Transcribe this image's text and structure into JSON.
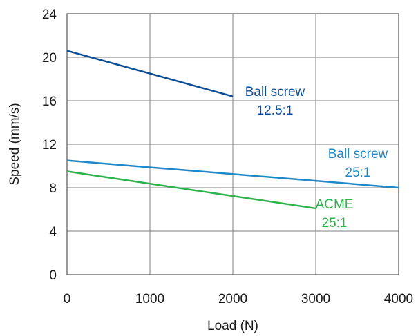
{
  "chart_data": {
    "type": "line",
    "xlabel": "Load (N)",
    "ylabel": "Speed (mm/s)",
    "xlim": [
      0,
      4000
    ],
    "ylim": [
      0,
      24
    ],
    "xticks": [
      0,
      1000,
      2000,
      3000,
      4000
    ],
    "yticks": [
      0,
      4,
      8,
      12,
      16,
      20,
      24
    ],
    "grid": true,
    "series": [
      {
        "name": "Ball screw 12.5:1",
        "label_lines": [
          "Ball screw",
          "12.5:1"
        ],
        "color": "#0d4f96",
        "x": [
          0,
          2000
        ],
        "y": [
          20.6,
          16.4
        ]
      },
      {
        "name": "Ball screw 25:1",
        "label_lines": [
          "Ball screw",
          "25:1"
        ],
        "color": "#1e88c8",
        "x": [
          0,
          4000
        ],
        "y": [
          10.5,
          8.0
        ]
      },
      {
        "name": "ACME 25:1",
        "label_lines": [
          "ACME",
          "25:1"
        ],
        "color": "#2db34a",
        "x": [
          0,
          3000
        ],
        "y": [
          9.5,
          6.1
        ]
      }
    ]
  }
}
